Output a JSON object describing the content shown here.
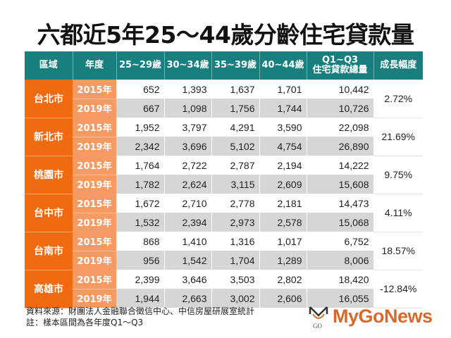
{
  "title": "六都近5年25～44歲分齡住宅貸款量",
  "table": {
    "headers": [
      "區域",
      "年度",
      "25~29歲",
      "30~34歲",
      "35~39歲",
      "40~44歲",
      "Q1~Q3",
      "住宅貸款總量",
      "成長幅度"
    ],
    "rows": [
      {
        "city": "台北市",
        "growth": "2.72%",
        "y2015": {
          "year": "2015年",
          "v": [
            "652",
            "1,393",
            "1,637",
            "1,701",
            "10,442"
          ]
        },
        "y2019": {
          "year": "2019年",
          "v": [
            "667",
            "1,098",
            "1,756",
            "1,744",
            "10,726"
          ]
        }
      },
      {
        "city": "新北市",
        "growth": "21.69%",
        "y2015": {
          "year": "2015年",
          "v": [
            "1,952",
            "3,797",
            "4,291",
            "3,590",
            "22,098"
          ]
        },
        "y2019": {
          "year": "2019年",
          "v": [
            "2,342",
            "3,696",
            "5,102",
            "4,754",
            "26,890"
          ]
        }
      },
      {
        "city": "桃園市",
        "growth": "9.75%",
        "y2015": {
          "year": "2015年",
          "v": [
            "1,764",
            "2,722",
            "2,787",
            "2,194",
            "14,222"
          ]
        },
        "y2019": {
          "year": "2019年",
          "v": [
            "1,782",
            "2,624",
            "3,115",
            "2,609",
            "15,608"
          ]
        }
      },
      {
        "city": "台中市",
        "growth": "4.11%",
        "y2015": {
          "year": "2015年",
          "v": [
            "1,672",
            "2,710",
            "2,778",
            "2,181",
            "14,473"
          ]
        },
        "y2019": {
          "year": "2019年",
          "v": [
            "1,532",
            "2,394",
            "2,973",
            "2,578",
            "15,068"
          ]
        }
      },
      {
        "city": "台南市",
        "growth": "18.57%",
        "y2015": {
          "year": "2015年",
          "v": [
            "868",
            "1,410",
            "1,316",
            "1,017",
            "6,752"
          ]
        },
        "y2019": {
          "year": "2019年",
          "v": [
            "956",
            "1,542",
            "1,704",
            "1,289",
            "8,006"
          ]
        }
      },
      {
        "city": "高雄市",
        "growth": "-12.84%",
        "y2015": {
          "year": "2015年",
          "v": [
            "2,399",
            "3,646",
            "3,503",
            "2,802",
            "18,420"
          ]
        },
        "y2019": {
          "year": "2019年",
          "v": [
            "1,944",
            "2,663",
            "3,002",
            "2,606",
            "16,055"
          ]
        }
      }
    ]
  },
  "footer": {
    "source": "資料來源：財團法人金融聯合徵信中心、中信房屋研展室統計",
    "note": "註：樣本區間為各年度Q1～Q3"
  },
  "logo": {
    "text": "MyGoNews",
    "mark": "GO",
    "color": "#d8692a"
  },
  "colors": {
    "header": "#17807f",
    "city": "#f06a12",
    "year": "#f59a63",
    "alt_row": "#d6d6d6"
  }
}
